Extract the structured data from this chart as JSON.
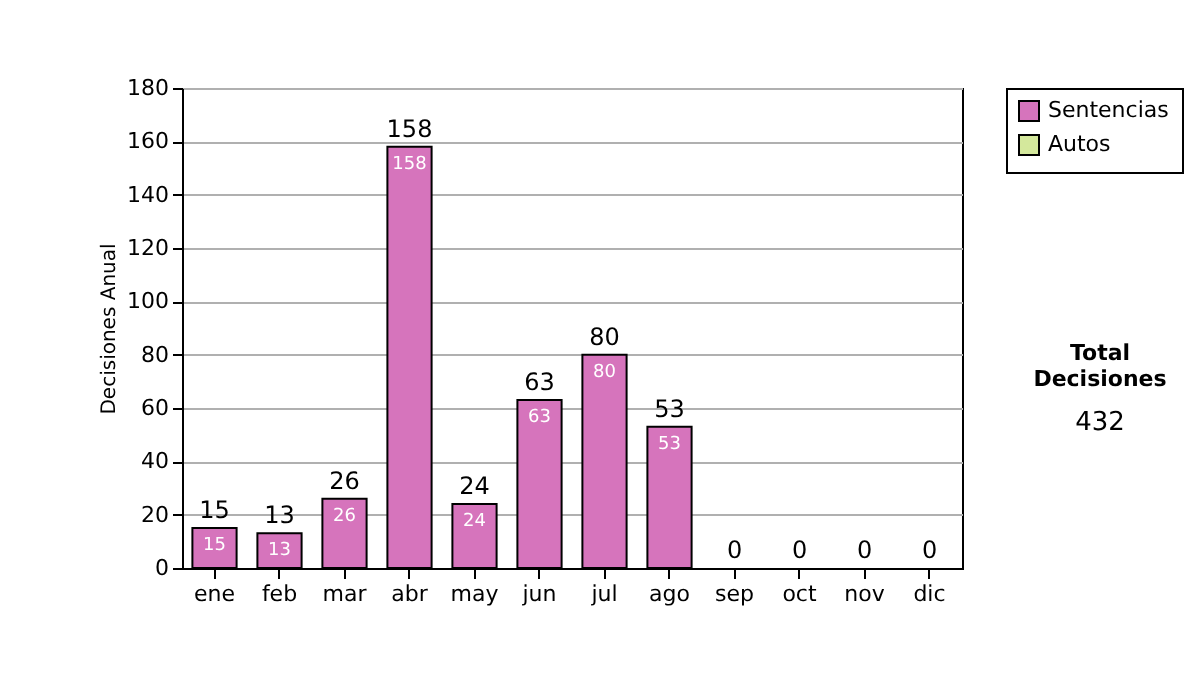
{
  "chart_data": {
    "type": "bar",
    "ylabel": "Decisiones Anual",
    "categories": [
      "ene",
      "feb",
      "mar",
      "abr",
      "may",
      "jun",
      "jul",
      "ago",
      "sep",
      "oct",
      "nov",
      "dic"
    ],
    "stacked": true,
    "series": [
      {
        "name": "Sentencias",
        "color": "#d674bc",
        "values": [
          15,
          13,
          26,
          158,
          24,
          63,
          80,
          53,
          0,
          0,
          0,
          0
        ],
        "value_labels": [
          "15",
          "13",
          "26",
          "158",
          "24",
          "63",
          "80",
          "53",
          null,
          null,
          null,
          null
        ]
      },
      {
        "name": "Autos",
        "color": "#d4e89c",
        "values": [
          0,
          0,
          0,
          0,
          0,
          0,
          0,
          0,
          0,
          0,
          0,
          0
        ]
      }
    ],
    "totals": [
      "15",
      "13",
      "26",
      "158",
      "24",
      "63",
      "80",
      "53",
      "0",
      "0",
      "0",
      "0"
    ],
    "ylim": [
      0,
      180
    ],
    "yticks": [
      0,
      20,
      40,
      60,
      80,
      100,
      120,
      140,
      160,
      180
    ],
    "grid": "y",
    "legend": "right",
    "annotations": [
      "Total Decisiones",
      "432"
    ]
  }
}
